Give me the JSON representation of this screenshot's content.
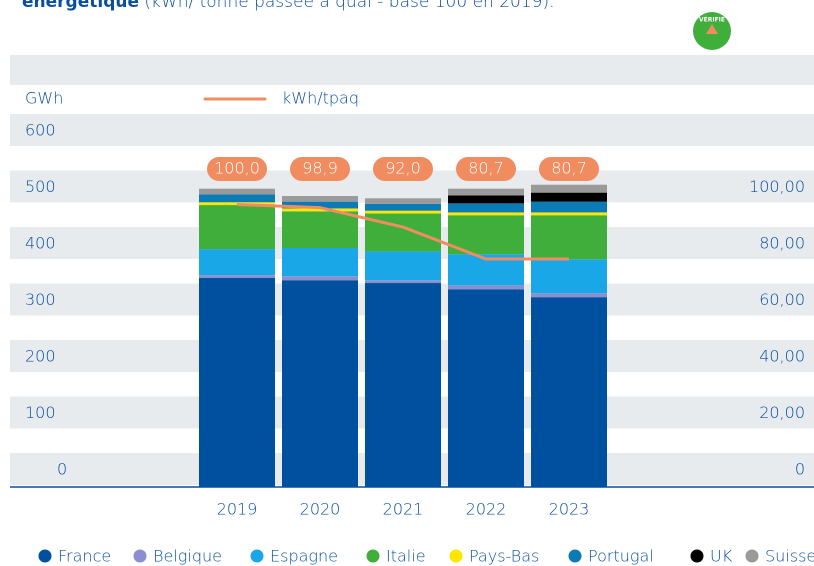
{
  "chart_data": {
    "type": "bar",
    "title_bold": "énergétique",
    "title": "(kWh/ tonne passée à quai - base 100 en 2019).",
    "badge": "VÉRIFIÉ",
    "ylabel": "GWh",
    "categories": [
      "2019",
      "2020",
      "2021",
      "2022",
      "2023"
    ],
    "stacked": true,
    "series": [
      {
        "name": "France",
        "color": "#0050a0",
        "values": [
          370,
          366,
          361,
          350,
          336
        ]
      },
      {
        "name": "Belgique",
        "color": "#8a8fd0",
        "values": [
          5,
          7,
          5,
          7,
          7
        ]
      },
      {
        "name": "Espagne",
        "color": "#1aa7e8",
        "values": [
          46,
          50,
          51,
          55,
          60
        ]
      },
      {
        "name": "Italie",
        "color": "#3fae3a",
        "values": [
          78,
          65,
          67,
          69,
          78
        ]
      },
      {
        "name": "Pays-Bas",
        "color": "#ffe600",
        "values": [
          5,
          5,
          5,
          5,
          5
        ]
      },
      {
        "name": "Portugal",
        "color": "#0a7bb5",
        "values": [
          14,
          12,
          12,
          16,
          19
        ]
      },
      {
        "name": "UK",
        "color": "#000000",
        "values": [
          0,
          0,
          0,
          14,
          16
        ]
      },
      {
        "name": "Suisse",
        "color": "#9a9a9a",
        "values": [
          10,
          10,
          10,
          12,
          14
        ]
      }
    ],
    "line": {
      "name": "kWh/tpaq",
      "color": "#f08c60",
      "axis": "y2",
      "values": [
        100,
        98.9,
        92,
        80.7,
        80.7
      ],
      "value_labels": [
        "100,0",
        "98,9",
        "92,0",
        "80,7",
        "80,7"
      ]
    },
    "ylim": [
      0,
      600
    ],
    "yticks": [
      0,
      100,
      200,
      300,
      400,
      500,
      600
    ],
    "y2lim": [
      0,
      120
    ],
    "y2ticks": [
      0,
      {
        "value": 20,
        "label": "20,00"
      },
      {
        "value": 40,
        "label": "40,00"
      },
      {
        "value": 60,
        "label": "60,00"
      },
      {
        "value": 80,
        "label": "80,00"
      },
      {
        "value": 100,
        "label": "100,00"
      }
    ],
    "grid": true
  }
}
